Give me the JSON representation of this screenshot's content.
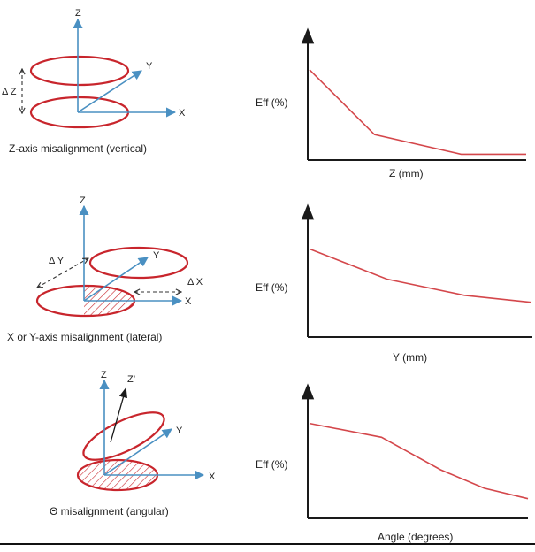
{
  "colors": {
    "axis_blue": "#4a90c2",
    "ring_red": "#c8252c",
    "curve_red": "#d4474b",
    "plot_axis": "#1a1a1a",
    "text": "#222222",
    "dash": "#333333"
  },
  "rows": [
    {
      "id": "vertical",
      "caption": "Z-axis misalignment (vertical)",
      "axis_labels": {
        "z": "Z",
        "y": "Y",
        "x": "X"
      },
      "offset_label": "Δ Z",
      "plot": {
        "ylabel": "Eff (%)",
        "xlabel": "Z (mm)"
      }
    },
    {
      "id": "lateral",
      "caption": "X or Y-axis misalignment (lateral)",
      "axis_labels": {
        "z": "Z",
        "y": "Y",
        "x": "X"
      },
      "offset_labels": {
        "dy": "Δ Y",
        "dx": "Δ X"
      },
      "plot": {
        "ylabel": "Eff (%)",
        "xlabel": "Y (mm)"
      }
    },
    {
      "id": "angular",
      "caption": "Θ  misalignment (angular)",
      "axis_labels": {
        "z": "Z",
        "zp": "Z’",
        "y": "Y",
        "x": "X"
      },
      "plot": {
        "ylabel": "Eff (%)",
        "xlabel": "Angle (degrees)"
      }
    }
  ],
  "chart_data": [
    {
      "type": "line",
      "xlabel": "Z (mm)",
      "ylabel": "Eff (%)",
      "xlim": [
        0,
        1
      ],
      "ylim": [
        0,
        1
      ],
      "x": [
        0,
        0.3,
        0.7,
        1.0
      ],
      "y": [
        0.78,
        0.22,
        0.05,
        0.05
      ]
    },
    {
      "type": "line",
      "xlabel": "Y (mm)",
      "ylabel": "Eff (%)",
      "xlim": [
        0,
        1
      ],
      "ylim": [
        0,
        1
      ],
      "x": [
        0,
        0.35,
        0.7,
        1.0
      ],
      "y": [
        0.76,
        0.5,
        0.36,
        0.3
      ]
    },
    {
      "type": "line",
      "xlabel": "Angle (degrees)",
      "ylabel": "Eff (%)",
      "xlim": [
        0,
        1
      ],
      "ylim": [
        0,
        1
      ],
      "x": [
        0,
        0.33,
        0.6,
        0.8,
        1.0
      ],
      "y": [
        0.82,
        0.7,
        0.42,
        0.26,
        0.17
      ]
    }
  ]
}
